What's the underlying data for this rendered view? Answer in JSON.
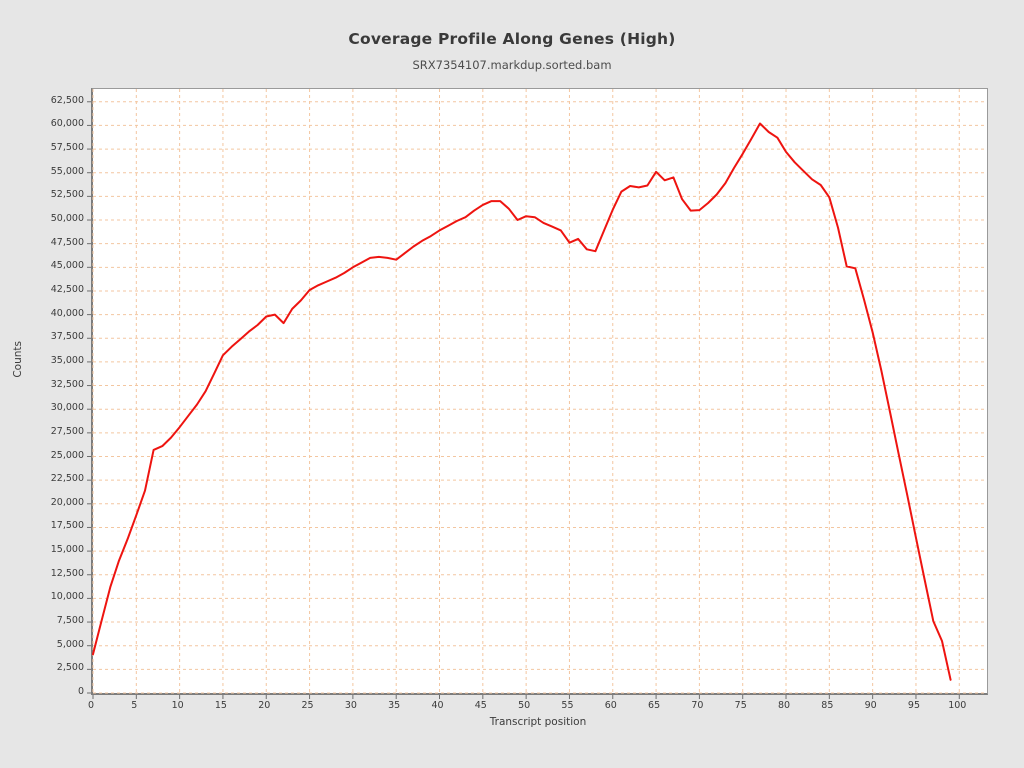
{
  "page": {
    "background": "#e6e6e6",
    "plot_background": "#ffffff"
  },
  "chart_data": {
    "type": "line",
    "title": "Coverage Profile Along Genes (High)",
    "subtitle": "SRX7354107.markdup.sorted.bam",
    "xlabel": "Transcript position",
    "ylabel": "Counts",
    "xlim": [
      0,
      103.2
    ],
    "ylim": [
      0,
      63850
    ],
    "x_ticks": [
      0,
      5,
      10,
      15,
      20,
      25,
      30,
      35,
      40,
      45,
      50,
      55,
      60,
      65,
      70,
      75,
      80,
      85,
      90,
      95,
      100
    ],
    "y_ticks": [
      0,
      2500,
      5000,
      7500,
      10000,
      12500,
      15000,
      17500,
      20000,
      22500,
      25000,
      27500,
      30000,
      32500,
      35000,
      37500,
      40000,
      42500,
      45000,
      47500,
      50000,
      52500,
      55000,
      57500,
      60000,
      62500
    ],
    "grid": "dashed",
    "grid_color": "#f3c6a0",
    "legend": "none",
    "series": [
      {
        "name": "coverage",
        "color": "#ee1410",
        "x": [
          0,
          1,
          2,
          3,
          4,
          5,
          6,
          7,
          8,
          9,
          10,
          11,
          12,
          13,
          14,
          15,
          16,
          17,
          18,
          19,
          20,
          21,
          22,
          23,
          24,
          25,
          26,
          27,
          28,
          29,
          30,
          31,
          32,
          33,
          34,
          35,
          36,
          37,
          38,
          39,
          40,
          41,
          42,
          43,
          44,
          45,
          46,
          47,
          48,
          49,
          50,
          51,
          52,
          53,
          54,
          55,
          56,
          57,
          58,
          59,
          60,
          61,
          62,
          63,
          64,
          65,
          66,
          67,
          68,
          69,
          70,
          71,
          72,
          73,
          74,
          75,
          76,
          77,
          78,
          79,
          80,
          81,
          82,
          83,
          84,
          85,
          86,
          87,
          88,
          89,
          90,
          91,
          92,
          93,
          94,
          95,
          96,
          97,
          98,
          99
        ],
        "y": [
          4100,
          7700,
          11200,
          14000,
          16300,
          18800,
          21400,
          25700,
          26100,
          27000,
          28100,
          29300,
          30500,
          31900,
          33800,
          35700,
          36600,
          37400,
          38200,
          38900,
          39800,
          40000,
          39100,
          40600,
          41500,
          42600,
          43100,
          43500,
          43900,
          44400,
          45000,
          45500,
          46000,
          46100,
          46000,
          45800,
          46500,
          47200,
          47800,
          48300,
          48900,
          49400,
          49900,
          50300,
          51000,
          51600,
          52000,
          52000,
          51200,
          50000,
          50400,
          50300,
          49700,
          49300,
          48900,
          47600,
          48000,
          46900,
          46700,
          48900,
          51100,
          53000,
          53600,
          53450,
          53650,
          55100,
          54200,
          54500,
          52200,
          51000,
          51050,
          51800,
          52700,
          53900,
          55500,
          57000,
          58600,
          60200,
          59300,
          58700,
          57200,
          56100,
          55200,
          54300,
          53700,
          52400,
          49200,
          45100,
          44900,
          41600,
          38100,
          34100,
          29700,
          25300,
          20900,
          16400,
          12000,
          7600,
          5500,
          1400
        ]
      }
    ]
  }
}
